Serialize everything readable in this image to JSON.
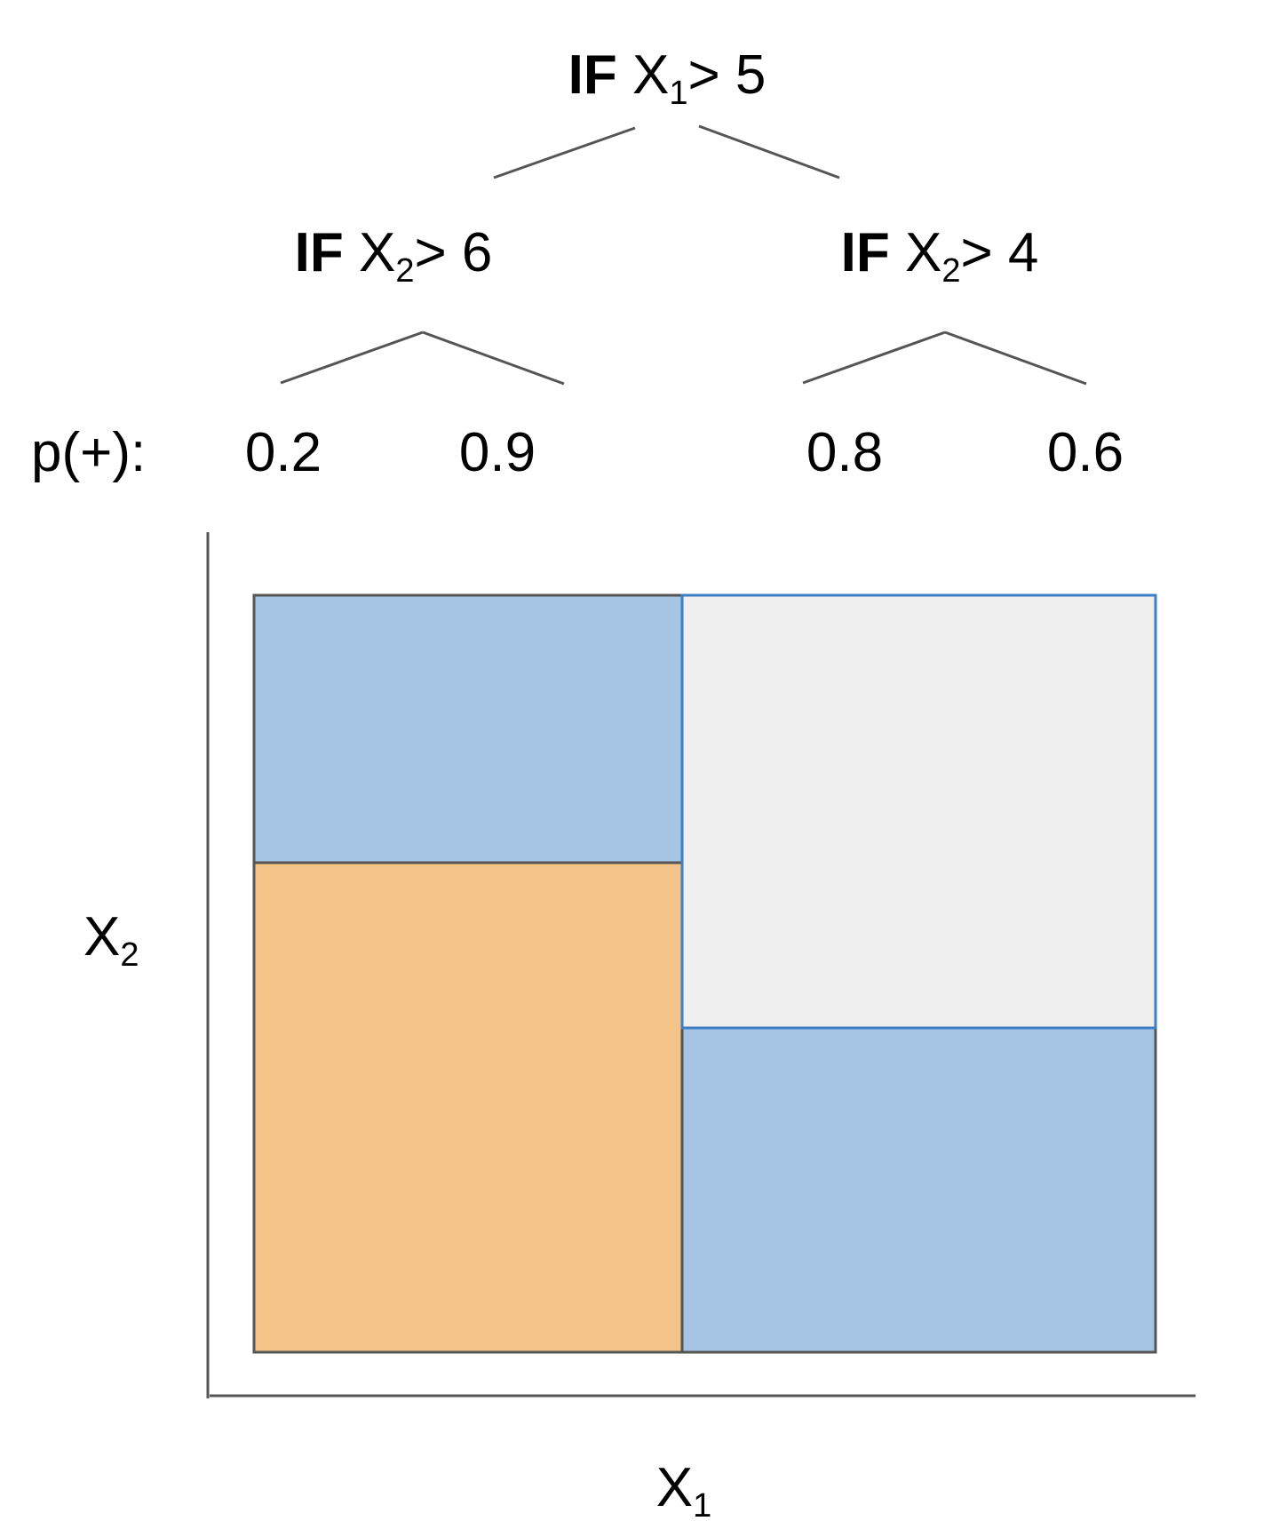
{
  "tree": {
    "root": {
      "prefix": "IF",
      "var": "X",
      "sub": "1",
      "rest": "> 5"
    },
    "left": {
      "prefix": "IF",
      "var": "X",
      "sub": "2",
      "rest": "> 6"
    },
    "right": {
      "prefix": "IF",
      "var": "X",
      "sub": "2",
      "rest": "> 4"
    },
    "prob_label": "p(+):",
    "leaves": [
      "0.2",
      "0.9",
      "0.8",
      "0.6"
    ]
  },
  "plot": {
    "xlabel": {
      "var": "X",
      "sub": "1"
    },
    "ylabel": {
      "var": "X",
      "sub": "2"
    },
    "regions": [
      {
        "name": "left-top",
        "color": "#a6c5e4"
      },
      {
        "name": "left-bottom",
        "color": "#f3c387"
      },
      {
        "name": "right-top",
        "color": "#efefef"
      },
      {
        "name": "right-bottom",
        "color": "#a6c5e4"
      }
    ],
    "colors": {
      "outline": "#555555",
      "highlight_outline": "#3d7fc4",
      "axis": "#555555"
    }
  }
}
